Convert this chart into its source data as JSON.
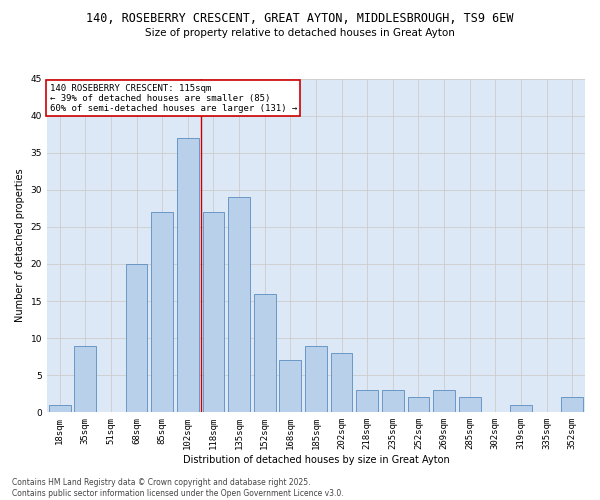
{
  "title_line1": "140, ROSEBERRY CRESCENT, GREAT AYTON, MIDDLESBROUGH, TS9 6EW",
  "title_line2": "Size of property relative to detached houses in Great Ayton",
  "xlabel": "Distribution of detached houses by size in Great Ayton",
  "ylabel": "Number of detached properties",
  "categories": [
    "18sqm",
    "35sqm",
    "51sqm",
    "68sqm",
    "85sqm",
    "102sqm",
    "118sqm",
    "135sqm",
    "152sqm",
    "168sqm",
    "185sqm",
    "202sqm",
    "218sqm",
    "235sqm",
    "252sqm",
    "269sqm",
    "285sqm",
    "302sqm",
    "319sqm",
    "335sqm",
    "352sqm"
  ],
  "values": [
    1,
    9,
    0,
    20,
    27,
    37,
    27,
    29,
    16,
    7,
    9,
    8,
    3,
    3,
    2,
    3,
    2,
    0,
    1,
    0,
    2
  ],
  "bar_color": "#b8d0ea",
  "bar_edge_color": "#5b8dc0",
  "vline_x_index": 6,
  "vline_color": "#cc0000",
  "annotation_text": "140 ROSEBERRY CRESCENT: 115sqm\n← 39% of detached houses are smaller (85)\n60% of semi-detached houses are larger (131) →",
  "annotation_box_color": "#ffffff",
  "annotation_box_edge": "#cc0000",
  "ylim": [
    0,
    45
  ],
  "yticks": [
    0,
    5,
    10,
    15,
    20,
    25,
    30,
    35,
    40,
    45
  ],
  "grid_color": "#cccccc",
  "bg_color": "#dce8f5",
  "footer_text": "Contains HM Land Registry data © Crown copyright and database right 2025.\nContains public sector information licensed under the Open Government Licence v3.0.",
  "title_fontsize": 8.5,
  "subtitle_fontsize": 7.5,
  "axis_label_fontsize": 7,
  "tick_fontsize": 6.5,
  "annotation_fontsize": 6.5,
  "ylabel_fontsize": 7
}
